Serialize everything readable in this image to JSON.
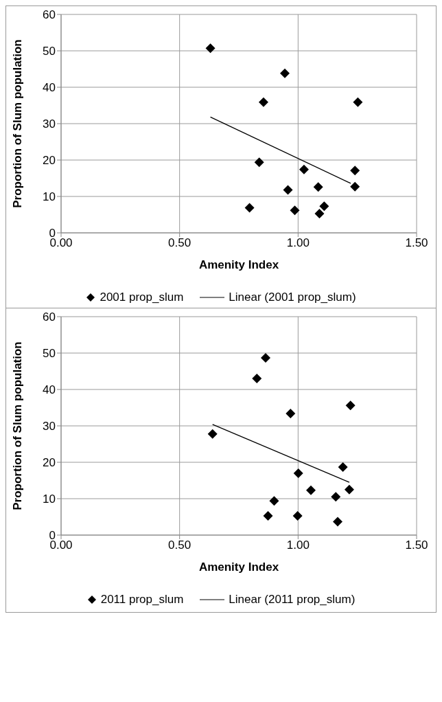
{
  "chart_data": [
    {
      "type": "scatter",
      "xlabel": "Amenity Index",
      "ylabel": "Proportion of Slum population",
      "xlim": [
        0,
        1.5
      ],
      "xticks": [
        {
          "value": 0,
          "label": "0.00"
        },
        {
          "value": 0.5,
          "label": "0.50"
        },
        {
          "value": 1,
          "label": "1.00"
        },
        {
          "value": 1.5,
          "label": "1.50"
        }
      ],
      "ylim": [
        0,
        60
      ],
      "yticks": [
        0,
        10,
        20,
        30,
        40,
        50,
        60
      ],
      "grid": true,
      "legend": "bottom",
      "series": [
        {
          "name": "2001 prop_slum",
          "marker": "diamond",
          "color": "#000000",
          "x": [
            0.63,
            0.944,
            0.854,
            1.252,
            0.836,
            1.025,
            1.24,
            1.24,
            1.085,
            0.957,
            0.795,
            0.986,
            1.11,
            1.09
          ],
          "values": [
            50.7,
            43.8,
            35.9,
            35.9,
            19.4,
            17.4,
            17.1,
            12.7,
            12.6,
            11.8,
            6.9,
            6.2,
            7.3,
            5.3
          ]
        },
        {
          "name": "Linear (2001 prop_slum)",
          "type": "line",
          "marker": "none",
          "color": "#000000",
          "x": [
            0.63,
            1.222
          ],
          "values": [
            31.8,
            13.6
          ]
        }
      ]
    },
    {
      "type": "scatter",
      "xlabel": "Amenity Index",
      "ylabel": "Proportion of Slum population",
      "xlim": [
        0,
        1.5
      ],
      "xticks": [
        {
          "value": 0,
          "label": "0.00"
        },
        {
          "value": 0.5,
          "label": "0.50"
        },
        {
          "value": 1,
          "label": "1.00"
        },
        {
          "value": 1.5,
          "label": "1.50"
        }
      ],
      "ylim": [
        0,
        60
      ],
      "yticks": [
        0,
        10,
        20,
        30,
        40,
        50,
        60
      ],
      "grid": true,
      "legend": "bottom",
      "series": [
        {
          "name": "2011 prop_slum",
          "marker": "diamond",
          "color": "#000000",
          "x": [
            0.863,
            0.826,
            1.221,
            0.968,
            0.639,
            1.189,
            1.001,
            1.054,
            1.216,
            1.159,
            0.899,
            0.873,
            0.998,
            1.167
          ],
          "values": [
            48.7,
            43.0,
            35.6,
            33.4,
            27.8,
            18.7,
            17.0,
            12.3,
            12.5,
            10.5,
            9.4,
            5.3,
            5.3,
            3.7
          ]
        },
        {
          "name": "Linear (2011 prop_slum)",
          "type": "line",
          "marker": "none",
          "color": "#000000",
          "x": [
            0.639,
            1.216
          ],
          "values": [
            30.4,
            14.5
          ]
        }
      ]
    }
  ]
}
